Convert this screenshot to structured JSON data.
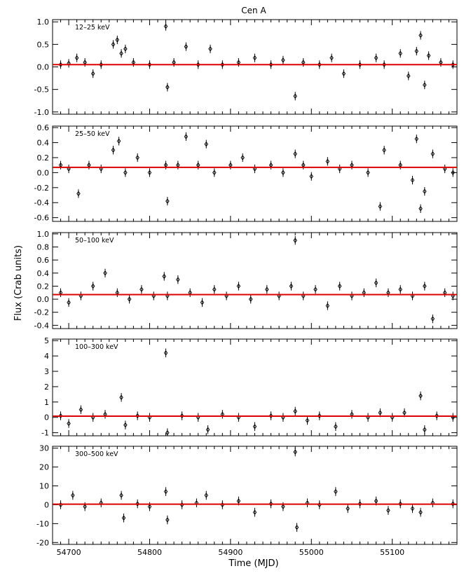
{
  "title": "Cen A",
  "xlabel": "Time (MJD)",
  "ylabel": "Flux (Crab units)",
  "colors": {
    "fit_line": "#dd0000",
    "points": "#000000"
  },
  "chart_data": {
    "type": "scatter",
    "title": "Cen A",
    "xlabel": "Time (MJD)",
    "ylabel": "Flux (Crab units)",
    "xlim": [
      54680,
      55180
    ],
    "x_ticks": [
      54700,
      54800,
      54900,
      55000,
      55100
    ],
    "grid": false,
    "panels": [
      {
        "name": "12-25 keV",
        "label": "12–25 keV",
        "ylim": [
          -1.05,
          1.05
        ],
        "y_ticks": [
          -1.0,
          -0.5,
          0.0,
          0.5,
          1.0
        ],
        "y_tick_labels": [
          "-1.0",
          "-0.5",
          "0.0",
          "0.5",
          "1.0"
        ],
        "fit_value": 0.05,
        "points": [
          [
            54690,
            0.05
          ],
          [
            54700,
            0.08
          ],
          [
            54710,
            0.2
          ],
          [
            54720,
            0.1
          ],
          [
            54730,
            -0.15
          ],
          [
            54740,
            0.05
          ],
          [
            54755,
            0.5
          ],
          [
            54760,
            0.6
          ],
          [
            54765,
            0.3
          ],
          [
            54770,
            0.4
          ],
          [
            54780,
            0.1
          ],
          [
            54800,
            0.05
          ],
          [
            54820,
            0.9
          ],
          [
            54822,
            -0.45
          ],
          [
            54830,
            0.1
          ],
          [
            54845,
            0.45
          ],
          [
            54860,
            0.05
          ],
          [
            54875,
            0.4
          ],
          [
            54890,
            0.05
          ],
          [
            54910,
            0.1
          ],
          [
            54930,
            0.2
          ],
          [
            54950,
            0.05
          ],
          [
            54965,
            0.15
          ],
          [
            54980,
            -0.65
          ],
          [
            54990,
            0.1
          ],
          [
            55010,
            0.05
          ],
          [
            55025,
            0.2
          ],
          [
            55040,
            -0.15
          ],
          [
            55060,
            0.05
          ],
          [
            55080,
            0.2
          ],
          [
            55090,
            0.05
          ],
          [
            55110,
            0.3
          ],
          [
            55120,
            -0.2
          ],
          [
            55130,
            0.35
          ],
          [
            55135,
            0.7
          ],
          [
            55140,
            -0.4
          ],
          [
            55145,
            0.25
          ],
          [
            55160,
            0.1
          ],
          [
            55175,
            0.05
          ]
        ]
      },
      {
        "name": "25-50 keV",
        "label": "25–50 keV",
        "ylim": [
          -0.65,
          0.62
        ],
        "y_ticks": [
          -0.6,
          -0.4,
          -0.2,
          0.0,
          0.2,
          0.4,
          0.6
        ],
        "y_tick_labels": [
          "-0.6",
          "-0.4",
          "-0.2",
          "0.0",
          "0.2",
          "0.4",
          "0.6"
        ],
        "fit_value": 0.07,
        "points": [
          [
            54690,
            0.1
          ],
          [
            54700,
            0.05
          ],
          [
            54712,
            -0.28
          ],
          [
            54725,
            0.1
          ],
          [
            54740,
            0.05
          ],
          [
            54755,
            0.3
          ],
          [
            54762,
            0.42
          ],
          [
            54770,
            0.0
          ],
          [
            54785,
            0.2
          ],
          [
            54800,
            0.0
          ],
          [
            54820,
            0.1
          ],
          [
            54822,
            -0.38
          ],
          [
            54835,
            0.1
          ],
          [
            54845,
            0.48
          ],
          [
            54860,
            0.1
          ],
          [
            54870,
            0.38
          ],
          [
            54880,
            0.0
          ],
          [
            54900,
            0.1
          ],
          [
            54915,
            0.2
          ],
          [
            54930,
            0.05
          ],
          [
            54950,
            0.1
          ],
          [
            54965,
            0.0
          ],
          [
            54980,
            0.25
          ],
          [
            54990,
            0.1
          ],
          [
            55000,
            -0.05
          ],
          [
            55020,
            0.15
          ],
          [
            55035,
            0.05
          ],
          [
            55050,
            0.1
          ],
          [
            55070,
            0.0
          ],
          [
            55085,
            -0.45
          ],
          [
            55090,
            0.3
          ],
          [
            55110,
            0.1
          ],
          [
            55125,
            -0.1
          ],
          [
            55130,
            0.45
          ],
          [
            55135,
            -0.48
          ],
          [
            55140,
            -0.25
          ],
          [
            55150,
            0.25
          ],
          [
            55165,
            0.05
          ],
          [
            55175,
            0.0
          ]
        ]
      },
      {
        "name": "50-100 keV",
        "label": "50–100 keV",
        "ylim": [
          -0.45,
          1.02
        ],
        "y_ticks": [
          -0.4,
          -0.2,
          0.0,
          0.2,
          0.4,
          0.6,
          0.8,
          1.0
        ],
        "y_tick_labels": [
          "-0.4",
          "-0.2",
          "0.0",
          "0.2",
          "0.4",
          "0.6",
          "0.8",
          "1.0"
        ],
        "fit_value": 0.07,
        "points": [
          [
            54690,
            0.1
          ],
          [
            54700,
            -0.05
          ],
          [
            54715,
            0.05
          ],
          [
            54730,
            0.2
          ],
          [
            54745,
            0.4
          ],
          [
            54760,
            0.1
          ],
          [
            54775,
            0.0
          ],
          [
            54790,
            0.15
          ],
          [
            54805,
            0.05
          ],
          [
            54818,
            0.35
          ],
          [
            54822,
            0.05
          ],
          [
            54835,
            0.3
          ],
          [
            54850,
            0.1
          ],
          [
            54865,
            -0.05
          ],
          [
            54880,
            0.15
          ],
          [
            54895,
            0.05
          ],
          [
            54910,
            0.2
          ],
          [
            54925,
            0.0
          ],
          [
            54945,
            0.15
          ],
          [
            54960,
            0.05
          ],
          [
            54975,
            0.2
          ],
          [
            54980,
            0.9
          ],
          [
            54990,
            0.05
          ],
          [
            55005,
            0.15
          ],
          [
            55020,
            -0.1
          ],
          [
            55035,
            0.2
          ],
          [
            55050,
            0.05
          ],
          [
            55065,
            0.1
          ],
          [
            55080,
            0.25
          ],
          [
            55095,
            0.1
          ],
          [
            55110,
            0.15
          ],
          [
            55125,
            0.05
          ],
          [
            55140,
            0.2
          ],
          [
            55150,
            -0.3
          ],
          [
            55165,
            0.1
          ],
          [
            55175,
            0.05
          ]
        ]
      },
      {
        "name": "100-300 keV",
        "label": "100–300 keV",
        "ylim": [
          -1.2,
          5.1
        ],
        "y_ticks": [
          -1,
          0,
          1,
          2,
          3,
          4,
          5
        ],
        "y_tick_labels": [
          "-1",
          "0",
          "1",
          "2",
          "3",
          "4",
          "5"
        ],
        "fit_value": 0.08,
        "points": [
          [
            54690,
            0.1
          ],
          [
            54700,
            -0.4
          ],
          [
            54715,
            0.5
          ],
          [
            54730,
            0.0
          ],
          [
            54745,
            0.2
          ],
          [
            54765,
            1.3
          ],
          [
            54770,
            -0.5
          ],
          [
            54785,
            0.1
          ],
          [
            54800,
            0.0
          ],
          [
            54820,
            4.2
          ],
          [
            54822,
            -1.0
          ],
          [
            54840,
            0.1
          ],
          [
            54860,
            0.0
          ],
          [
            54872,
            -0.8
          ],
          [
            54890,
            0.2
          ],
          [
            54910,
            0.0
          ],
          [
            54930,
            -0.6
          ],
          [
            54950,
            0.1
          ],
          [
            54965,
            0.0
          ],
          [
            54980,
            0.4
          ],
          [
            54995,
            -0.2
          ],
          [
            55010,
            0.1
          ],
          [
            55030,
            -0.6
          ],
          [
            55050,
            0.2
          ],
          [
            55070,
            0.0
          ],
          [
            55085,
            0.3
          ],
          [
            55100,
            0.0
          ],
          [
            55115,
            0.3
          ],
          [
            55135,
            1.4
          ],
          [
            55140,
            -0.8
          ],
          [
            55155,
            0.1
          ],
          [
            55175,
            0.0
          ]
        ]
      },
      {
        "name": "300-500 keV",
        "label": "300–500 keV",
        "ylim": [
          -21,
          31
        ],
        "y_ticks": [
          -20,
          -10,
          0,
          10,
          20,
          30
        ],
        "y_tick_labels": [
          "-20",
          "-10",
          "0",
          "10",
          "20",
          "30"
        ],
        "fit_value": 0.3,
        "points": [
          [
            54690,
            0.0
          ],
          [
            54705,
            5.0
          ],
          [
            54720,
            -1.0
          ],
          [
            54740,
            1.0
          ],
          [
            54765,
            5.0
          ],
          [
            54768,
            -7.0
          ],
          [
            54785,
            0.5
          ],
          [
            54800,
            -1.0
          ],
          [
            54820,
            7.0
          ],
          [
            54822,
            -8.0
          ],
          [
            54840,
            0.0
          ],
          [
            54858,
            1.0
          ],
          [
            54870,
            5.0
          ],
          [
            54890,
            0.0
          ],
          [
            54910,
            2.0
          ],
          [
            54930,
            -4.0
          ],
          [
            54950,
            0.5
          ],
          [
            54965,
            -1.0
          ],
          [
            54980,
            28.0
          ],
          [
            54982,
            -12.0
          ],
          [
            54995,
            1.0
          ],
          [
            55010,
            0.0
          ],
          [
            55030,
            7.0
          ],
          [
            55045,
            -2.0
          ],
          [
            55060,
            0.5
          ],
          [
            55080,
            2.0
          ],
          [
            55095,
            -3.0
          ],
          [
            55110,
            0.5
          ],
          [
            55125,
            -2.0
          ],
          [
            55135,
            -4.0
          ],
          [
            55150,
            1.0
          ],
          [
            55175,
            0.5
          ]
        ]
      }
    ]
  }
}
